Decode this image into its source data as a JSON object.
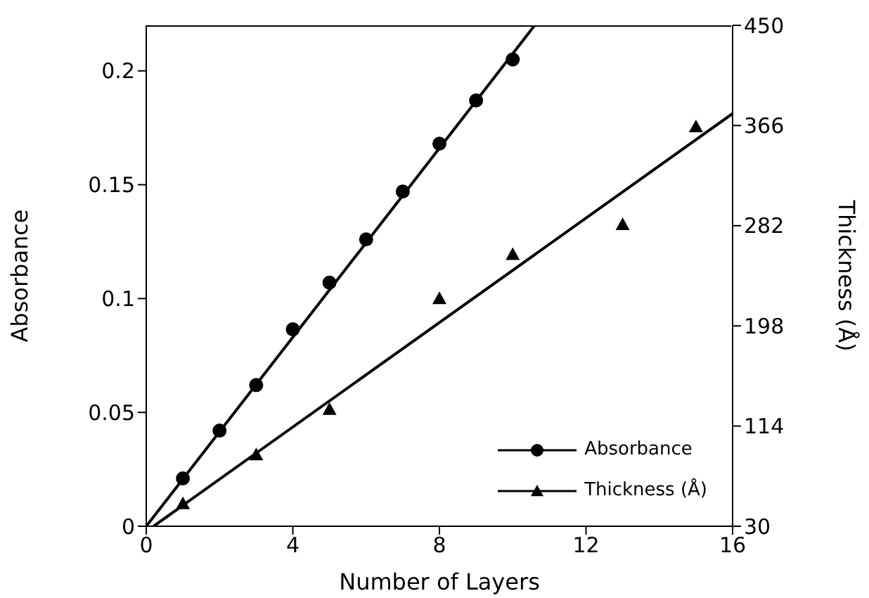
{
  "chart_data": {
    "type": "scatter",
    "xlabel": "Number of Layers",
    "ylabel": "Absorbance",
    "y2label": "Thickness (Å)",
    "xlim": [
      0,
      16
    ],
    "xticks": [
      0,
      4,
      8,
      12,
      16
    ],
    "ylim": [
      0,
      0.22
    ],
    "yticks": [
      0,
      0.05,
      0.1,
      0.15,
      0.2
    ],
    "y2lim": [
      30,
      450
    ],
    "y2ticks": [
      30,
      114,
      198,
      282,
      366,
      450
    ],
    "grid": false,
    "legend": "bottom right",
    "series": [
      {
        "name": "Absorbance",
        "marker": "circle",
        "color": "#000000",
        "x": [
          1,
          2,
          3,
          4,
          5,
          6,
          7,
          8,
          9,
          10
        ],
        "values": [
          0.021,
          0.042,
          0.062,
          0.0865,
          0.107,
          0.126,
          0.147,
          0.168,
          0.187,
          0.205
        ]
      },
      {
        "name": "Thickness (Å)",
        "marker": "triangle",
        "color": "#000000",
        "axis": "y2",
        "x": [
          1,
          3,
          5,
          8,
          10,
          13,
          15
        ],
        "values": [
          49,
          90,
          128,
          221,
          258,
          283,
          365
        ]
      },
      {
        "type": "line",
        "marker": "none",
        "color": "#000000",
        "x": [
          0,
          10.6
        ],
        "values": [
          0,
          0.22
        ]
      },
      {
        "type": "line",
        "marker": "none",
        "color": "#000000",
        "axis": "y2",
        "x": [
          0.2,
          16
        ],
        "values": [
          30,
          376
        ]
      }
    ]
  }
}
